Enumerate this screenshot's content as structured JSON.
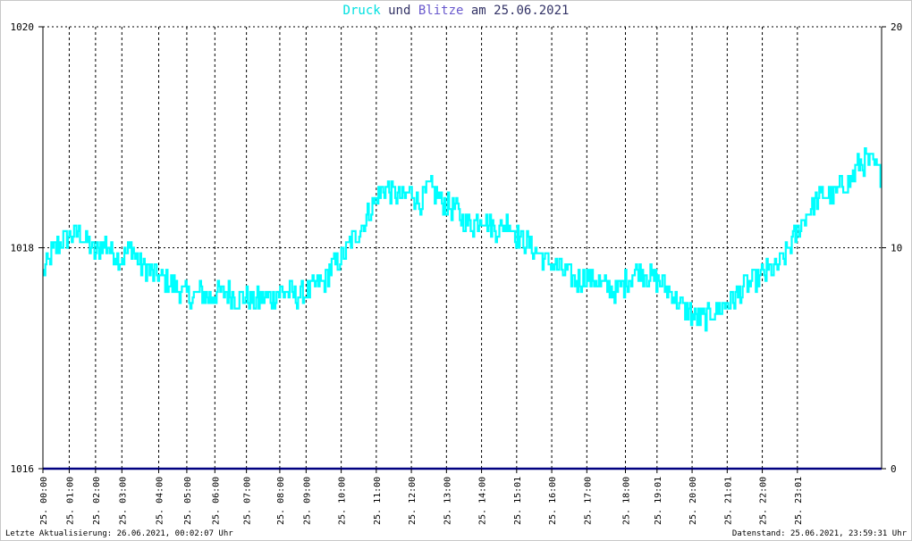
{
  "title": {
    "series1": "Druck",
    "connector": "und",
    "series2": "Blitze",
    "prefix": "am",
    "date": "25.06.2021"
  },
  "footer": {
    "left": "Letzte Aktualisierung: 26.06.2021, 00:02:07 Uhr",
    "right": "Datenstand: 25.06.2021, 23:59:31 Uhr"
  },
  "colors": {
    "druck": "#00ffff",
    "blitze": "#000080",
    "grid": "#000000",
    "background": "#ffffff"
  },
  "chart_data": {
    "type": "line",
    "left_axis": {
      "ticks": [
        "1016",
        "1018",
        "1020"
      ],
      "ylim": [
        1016,
        1020
      ]
    },
    "right_axis": {
      "ticks": [
        "0",
        "10",
        "20"
      ],
      "ylim": [
        0,
        20
      ]
    },
    "x_tick_labels": [
      "25. 00:00",
      "25. 01:00",
      "25. 02:00",
      "25. 03:00",
      "25. 04:00",
      "25. 05:00",
      "25. 06:00",
      "25. 07:00",
      "25. 08:00",
      "25. 09:00",
      "25. 10:00",
      "25. 11:00",
      "25. 12:00",
      "25. 13:00",
      "25. 14:00",
      "25. 15:01",
      "25. 16:00",
      "25. 17:00",
      "25. 18:00",
      "25. 19:01",
      "25. 20:00",
      "25. 21:01",
      "25. 22:00",
      "25. 23:01"
    ],
    "x_tick_hours": [
      0.0,
      0.75,
      1.5,
      2.25,
      3.3,
      4.1,
      4.9,
      5.8,
      6.75,
      7.5,
      8.5,
      9.5,
      10.5,
      11.5,
      12.5,
      13.5,
      14.5,
      15.5,
      16.6,
      17.5,
      18.5,
      19.5,
      20.5,
      21.5
    ],
    "x_range_hours": [
      0,
      23.9
    ],
    "grid": true,
    "series": [
      {
        "name": "Druck",
        "axis": "left",
        "x_hours": [
          0.0,
          0.25,
          0.5,
          0.75,
          1.0,
          1.25,
          1.5,
          1.75,
          2.0,
          2.25,
          2.5,
          2.75,
          3.0,
          3.25,
          3.5,
          3.75,
          4.0,
          4.25,
          4.5,
          4.75,
          5.0,
          5.25,
          5.5,
          5.75,
          6.0,
          6.25,
          6.5,
          6.75,
          7.0,
          7.25,
          7.5,
          7.75,
          8.0,
          8.25,
          8.5,
          8.75,
          9.0,
          9.25,
          9.5,
          9.75,
          10.0,
          10.25,
          10.5,
          10.75,
          11.0,
          11.25,
          11.5,
          11.75,
          12.0,
          12.25,
          12.5,
          12.75,
          13.0,
          13.25,
          13.5,
          13.75,
          14.0,
          14.25,
          14.5,
          14.75,
          15.0,
          15.25,
          15.5,
          15.75,
          16.0,
          16.25,
          16.5,
          16.75,
          17.0,
          17.25,
          17.5,
          17.75,
          18.0,
          18.25,
          18.5,
          18.75,
          19.0,
          19.25,
          19.5,
          19.75,
          20.0,
          20.25,
          20.5,
          20.75,
          21.0,
          21.25,
          21.5,
          21.75,
          22.0,
          22.25,
          22.5,
          22.75,
          23.0,
          23.25,
          23.5,
          23.75,
          23.9
        ],
        "values": [
          1017.75,
          1017.95,
          1018.05,
          1018.1,
          1018.15,
          1018.05,
          1017.95,
          1018.05,
          1017.95,
          1017.9,
          1018.0,
          1017.85,
          1017.8,
          1017.75,
          1017.7,
          1017.65,
          1017.6,
          1017.55,
          1017.6,
          1017.55,
          1017.6,
          1017.6,
          1017.55,
          1017.55,
          1017.5,
          1017.55,
          1017.55,
          1017.6,
          1017.6,
          1017.55,
          1017.6,
          1017.65,
          1017.7,
          1017.85,
          1017.9,
          1018.05,
          1018.15,
          1018.3,
          1018.45,
          1018.55,
          1018.5,
          1018.45,
          1018.5,
          1018.4,
          1018.55,
          1018.45,
          1018.4,
          1018.35,
          1018.25,
          1018.2,
          1018.3,
          1018.2,
          1018.15,
          1018.25,
          1018.1,
          1018.05,
          1018.0,
          1017.9,
          1017.85,
          1017.8,
          1017.75,
          1017.7,
          1017.75,
          1017.7,
          1017.65,
          1017.6,
          1017.65,
          1017.75,
          1017.8,
          1017.75,
          1017.7,
          1017.65,
          1017.55,
          1017.45,
          1017.4,
          1017.35,
          1017.4,
          1017.45,
          1017.5,
          1017.55,
          1017.65,
          1017.7,
          1017.75,
          1017.8,
          1017.85,
          1018.0,
          1018.15,
          1018.3,
          1018.4,
          1018.5,
          1018.45,
          1018.55,
          1018.6,
          1018.75,
          1018.8,
          1018.7,
          1018.65
        ]
      },
      {
        "name": "Blitze",
        "axis": "right",
        "x_hours": [
          0.0,
          23.9
        ],
        "values": [
          0,
          0
        ]
      }
    ]
  }
}
